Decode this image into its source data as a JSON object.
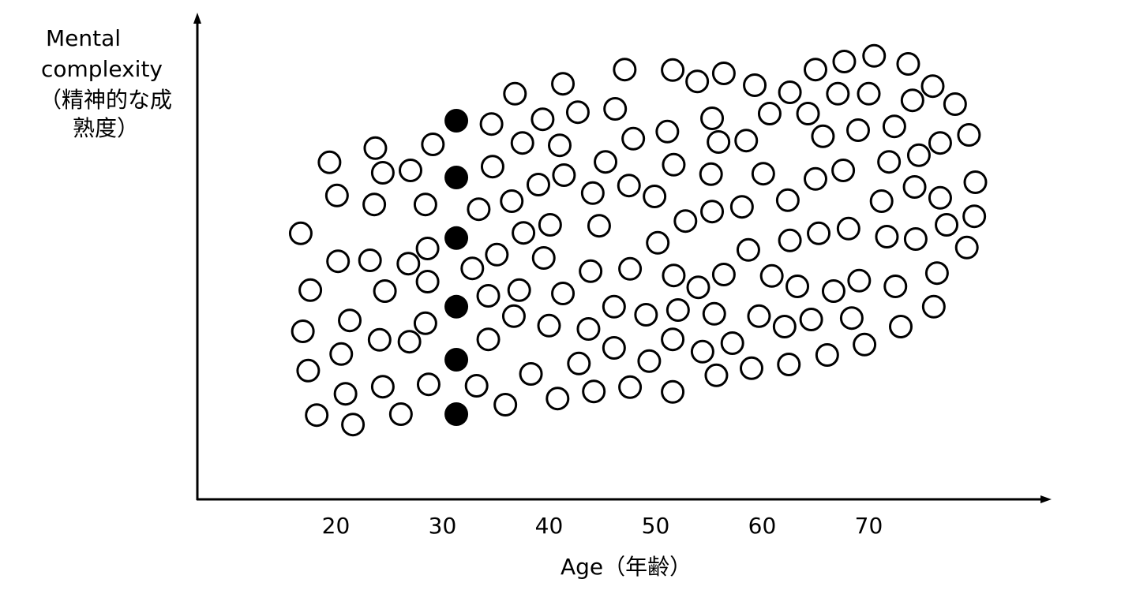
{
  "chart_data": {
    "type": "scatter",
    "y_label": [
      "Mental",
      "complexity",
      "（精神的な成",
      "熟度）"
    ],
    "x_label": "Age（年齢）",
    "xlim": [
      7,
      87
    ],
    "ylim": [
      0,
      100
    ],
    "xticks": [
      20,
      30,
      40,
      50,
      60,
      70
    ],
    "series": [
      {
        "color": "#000000",
        "fill": "#000000",
        "x": [
          31.3,
          31.3,
          31.3,
          31.3,
          31.3,
          31.3
        ],
        "values": [
          80,
          68,
          55.2,
          40.7,
          29.5,
          18
        ]
      },
      {
        "color": "#000000",
        "fill": "#ffffff",
        "x": [
          16.7,
          19.4,
          20.1,
          23.7,
          24.4,
          23.6,
          27.0,
          29.1,
          28.4,
          34.6,
          36.8,
          41.3,
          39.4,
          42.7,
          37.5,
          41.0,
          34.7,
          39.0,
          41.4,
          36.5,
          33.4,
          44.1,
          45.3,
          46.2,
          47.1,
          51.6,
          53.9,
          56.4,
          59.3,
          62.6,
          65.0,
          67.7,
          70.5,
          73.7,
          76.0,
          78.1,
          79.4,
          74.1,
          70.0,
          67.1,
          64.3,
          60.7,
          55.3,
          51.1,
          47.9,
          55.9,
          58.5,
          65.7,
          69.0,
          72.4,
          76.7,
          74.7,
          71.9,
          67.6,
          65.0,
          60.1,
          55.2,
          51.7,
          47.5,
          49.9,
          52.8,
          55.3,
          58.1,
          62.4,
          71.2,
          74.3,
          76.7,
          80.0,
          79.9,
          77.3,
          74.4,
          71.7,
          68.1,
          65.3,
          62.6,
          58.7,
          50.2,
          44.7,
          40.1,
          37.6,
          28.6,
          20.2,
          23.2,
          26.8,
          35.1,
          39.5,
          32.8,
          28.6,
          17.6,
          24.6,
          34.3,
          37.2,
          41.3,
          43.9,
          47.6,
          51.7,
          54.0,
          56.4,
          60.9,
          63.3,
          66.7,
          69.1,
          72.5,
          76.4,
          79.2,
          76.1,
          73.0,
          68.4,
          64.6,
          62.1,
          59.7,
          55.5,
          52.1,
          49.1,
          46.1,
          43.7,
          40.0,
          36.7,
          28.4,
          21.3,
          16.9,
          24.1,
          26.9,
          34.3,
          20.5,
          17.4,
          24.4,
          20.9,
          28.7,
          33.2,
          35.9,
          38.3,
          40.8,
          42.8,
          44.2,
          46.1,
          47.6,
          49.4,
          51.6,
          54.4,
          57.2,
          51.6,
          55.7,
          59.0,
          62.5,
          66.1,
          69.6,
          18.2,
          21.6,
          26.1
        ],
        "values": [
          56.2,
          71.2,
          64.2,
          74.2,
          69,
          62.3,
          69.5,
          75,
          62.3,
          79.3,
          85.7,
          87.8,
          80.3,
          81.8,
          75.3,
          74.8,
          70.3,
          66.5,
          68.5,
          63,
          61.3,
          64.7,
          71.3,
          82.5,
          90.8,
          90.7,
          88.3,
          90,
          87.5,
          86,
          90.8,
          92.5,
          93.7,
          92,
          87.3,
          83.5,
          77,
          84.3,
          85.7,
          85.7,
          81.5,
          81.5,
          80.5,
          77.7,
          76.2,
          75.5,
          75.8,
          76.7,
          78,
          78.8,
          75.3,
          72.7,
          71.3,
          69.5,
          67.7,
          68.8,
          68.7,
          70.7,
          66.3,
          64,
          58.8,
          60.8,
          61.8,
          63.2,
          63,
          66,
          63.7,
          67,
          59.8,
          58,
          55,
          55.5,
          57.2,
          56.2,
          54.7,
          52.7,
          54.2,
          57.8,
          58,
          56.3,
          53,
          50.3,
          50.5,
          49.8,
          51.7,
          51,
          48.8,
          46,
          44.2,
          44,
          43,
          44.2,
          43.5,
          48.2,
          48.7,
          47.3,
          44.8,
          47.5,
          47.2,
          45,
          44,
          46.2,
          45,
          47.8,
          53.2,
          40.7,
          36.5,
          38.3,
          38,
          36.5,
          38.7,
          39.2,
          40,
          39,
          40.7,
          36,
          36.7,
          38.7,
          37.2,
          37.8,
          35.5,
          33.7,
          33.3,
          33.8,
          30.7,
          27.2,
          23.8,
          22.3,
          24.3,
          24,
          20,
          26.5,
          21.3,
          28.7,
          22.8,
          32,
          23.7,
          29.2,
          33.8,
          31.2,
          33,
          22.7,
          26.2,
          27.7,
          28.5,
          30.5,
          32.7,
          17.8,
          15.8,
          18
        ]
      }
    ]
  }
}
